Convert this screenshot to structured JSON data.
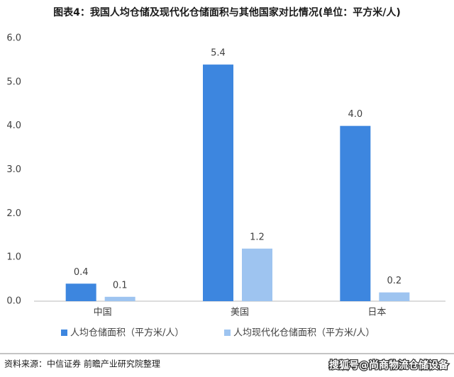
{
  "chart_data": {
    "type": "bar",
    "title": "图表4：我国人均仓储及现代化仓储面积与其他国家对比情况(单位：平方米/人)",
    "source": "资料来源：中信证券 前瞻产业研究院整理",
    "watermark": "搜狐号@尚商物流仓储设备",
    "categories": [
      "中国",
      "美国",
      "日本"
    ],
    "series": [
      {
        "name": "人均仓储面积（平方米/人）",
        "color": "#3d86df",
        "values": [
          0.4,
          5.4,
          4.0
        ],
        "value_labels": [
          "0.4",
          "5.4",
          "4.0"
        ]
      },
      {
        "name": "人均现代化仓储面积（平方米/人）",
        "color": "#9ec4f0",
        "values": [
          0.1,
          1.2,
          0.2
        ],
        "value_labels": [
          "0.1",
          "1.2",
          "0.2"
        ]
      }
    ],
    "ylim": [
      0,
      6
    ],
    "yticks": [
      {
        "value": 0,
        "label": "0.0"
      },
      {
        "value": 1,
        "label": "1.0"
      },
      {
        "value": 2,
        "label": "2.0"
      },
      {
        "value": 3,
        "label": "3.0"
      },
      {
        "value": 4,
        "label": "4.0"
      },
      {
        "value": 5,
        "label": "5.0"
      },
      {
        "value": 6,
        "label": "6.0"
      }
    ],
    "grid": false
  }
}
